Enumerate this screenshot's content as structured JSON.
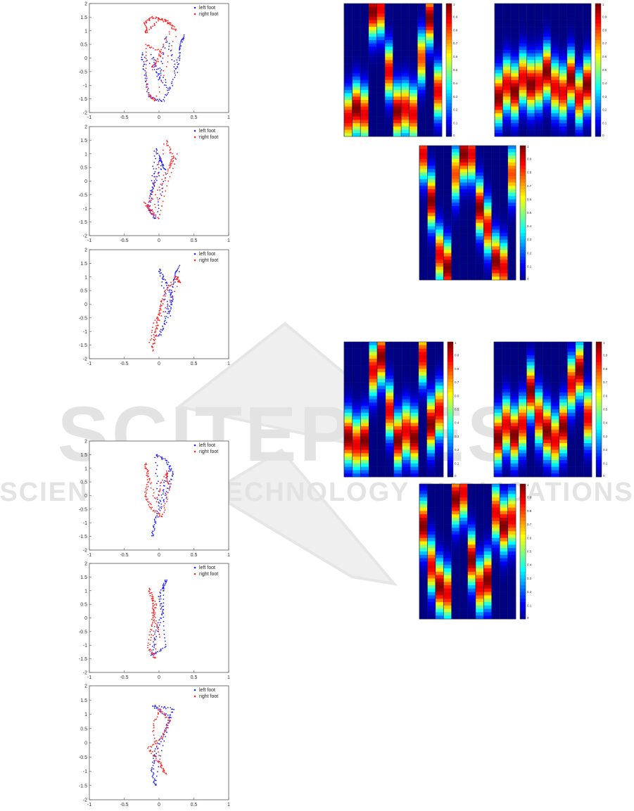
{
  "chart_data": [
    {
      "type": "scatter",
      "id": "trajectory-1",
      "xlim": [
        -1,
        1
      ],
      "ylim": [
        -2,
        2
      ],
      "xticks": [
        "-1",
        "-0.5",
        "0",
        "0.5",
        "1"
      ],
      "yticks": [
        "2",
        "1.5",
        "1",
        "0.5",
        "0",
        "-0.5",
        "-1",
        "-1.5",
        "-2"
      ],
      "legend": [
        {
          "label": "left foot",
          "color": "#1f1fff"
        },
        {
          "label": "right foot",
          "color": "#ff1f1f"
        }
      ],
      "series": [
        {
          "name": "left foot",
          "color": "#1f1fff",
          "points": [
            [
              -0.25,
              0.2
            ],
            [
              -0.2,
              -0.6
            ],
            [
              -0.15,
              -1.4
            ],
            [
              0.05,
              -1.6
            ],
            [
              0.2,
              -0.9
            ],
            [
              0.3,
              0.3
            ],
            [
              0.35,
              0.85
            ],
            [
              0.25,
              -0.5
            ],
            [
              0.1,
              0.8
            ],
            [
              0.0,
              -0.8
            ],
            [
              -0.1,
              0.1
            ],
            [
              0.15,
              -1.2
            ]
          ]
        },
        {
          "name": "right foot",
          "color": "#ff1f1f",
          "points": [
            [
              -0.2,
              1.3
            ],
            [
              -0.1,
              1.5
            ],
            [
              0.1,
              1.4
            ],
            [
              0.25,
              1.0
            ],
            [
              -0.05,
              -1.6
            ],
            [
              -0.15,
              -1.3
            ],
            [
              -0.2,
              0.5
            ],
            [
              0.05,
              0.2
            ],
            [
              -0.1,
              -0.4
            ],
            [
              0.2,
              1.2
            ],
            [
              0.0,
              1.45
            ],
            [
              -0.18,
              0.9
            ]
          ]
        }
      ]
    },
    {
      "type": "scatter",
      "id": "trajectory-2",
      "xlim": [
        -1,
        1
      ],
      "ylim": [
        -2,
        2
      ],
      "xticks": [
        "-1",
        "-0.5",
        "0",
        "0.5",
        "1"
      ],
      "yticks": [
        "2",
        "1.5",
        "1",
        "0.5",
        "0",
        "-0.5",
        "-1",
        "-1.5",
        "-2"
      ],
      "legend": [
        {
          "label": "left foot",
          "color": "#1f1fff"
        },
        {
          "label": "right foot",
          "color": "#ff1f1f"
        }
      ],
      "series": [
        {
          "name": "left foot",
          "color": "#1f1fff",
          "points": [
            [
              -0.05,
              1.2
            ],
            [
              0.05,
              0.6
            ],
            [
              -0.1,
              -0.3
            ],
            [
              -0.15,
              -1.0
            ],
            [
              -0.05,
              -1.4
            ],
            [
              0.1,
              0.4
            ],
            [
              0.0,
              0.9
            ],
            [
              -0.12,
              -0.6
            ]
          ]
        },
        {
          "name": "right foot",
          "color": "#ff1f1f",
          "points": [
            [
              0.1,
              1.5
            ],
            [
              0.2,
              0.9
            ],
            [
              0.15,
              0.5
            ],
            [
              -0.1,
              -1.2
            ],
            [
              -0.2,
              -0.8
            ],
            [
              0.0,
              -1.4
            ],
            [
              0.25,
              1.0
            ],
            [
              -0.15,
              -0.9
            ]
          ]
        }
      ]
    },
    {
      "type": "scatter",
      "id": "trajectory-3",
      "xlim": [
        -1,
        1
      ],
      "ylim": [
        -2,
        2
      ],
      "xticks": [
        "-1",
        "-0.5",
        "0",
        "0.5",
        "1"
      ],
      "yticks": [
        "2",
        "1.5",
        "1",
        "0.5",
        "0",
        "-0.5",
        "-1",
        "-1.5",
        "-2"
      ],
      "legend": [
        {
          "label": "left foot",
          "color": "#1f1fff"
        },
        {
          "label": "right foot",
          "color": "#ff1f1f"
        }
      ],
      "series": [
        {
          "name": "left foot",
          "color": "#1f1fff",
          "points": [
            [
              0.0,
              1.3
            ],
            [
              0.1,
              0.8
            ],
            [
              0.2,
              0.2
            ],
            [
              0.1,
              -0.6
            ],
            [
              0.0,
              -1.2
            ],
            [
              0.3,
              1.4
            ],
            [
              0.2,
              0.9
            ],
            [
              0.15,
              -0.4
            ]
          ]
        },
        {
          "name": "right foot",
          "color": "#ff1f1f",
          "points": [
            [
              -0.1,
              -1.7
            ],
            [
              -0.05,
              -1.1
            ],
            [
              0.0,
              -0.3
            ],
            [
              0.1,
              0.5
            ],
            [
              0.25,
              1.0
            ],
            [
              0.3,
              0.8
            ],
            [
              -0.15,
              -1.4
            ],
            [
              0.05,
              0.2
            ]
          ]
        }
      ]
    },
    {
      "type": "scatter",
      "id": "trajectory-4",
      "xlim": [
        -1,
        1
      ],
      "ylim": [
        -2,
        2
      ],
      "xticks": [
        "-1",
        "-0.5",
        "0",
        "0.5",
        "1"
      ],
      "yticks": [
        "2",
        "1.5",
        "1",
        "0.5",
        "0",
        "-0.5",
        "-1",
        "-1.5",
        "-2"
      ],
      "legend": [
        {
          "label": "left foot",
          "color": "#1f1fff"
        },
        {
          "label": "right foot",
          "color": "#ff1f1f"
        }
      ],
      "series": [
        {
          "name": "left foot",
          "color": "#1f1fff",
          "points": [
            [
              -0.05,
              1.5
            ],
            [
              0.1,
              1.3
            ],
            [
              0.2,
              0.8
            ],
            [
              0.1,
              0.0
            ],
            [
              -0.05,
              -0.9
            ],
            [
              -0.1,
              -1.5
            ],
            [
              0.15,
              1.1
            ],
            [
              0.0,
              -0.4
            ]
          ]
        },
        {
          "name": "right foot",
          "color": "#ff1f1f",
          "points": [
            [
              -0.2,
              1.2
            ],
            [
              -0.15,
              0.6
            ],
            [
              -0.2,
              0.0
            ],
            [
              -0.1,
              -0.5
            ],
            [
              0.05,
              -0.8
            ],
            [
              0.15,
              0.4
            ],
            [
              0.1,
              0.9
            ],
            [
              -0.05,
              -0.2
            ]
          ]
        }
      ]
    },
    {
      "type": "scatter",
      "id": "trajectory-5",
      "xlim": [
        -1,
        1
      ],
      "ylim": [
        -2,
        2
      ],
      "xticks": [
        "-1",
        "-0.5",
        "0",
        "0.5",
        "1"
      ],
      "yticks": [
        "2",
        "1.5",
        "1",
        "0.5",
        "0",
        "-0.5",
        "-1",
        "-1.5",
        "-2"
      ],
      "legend": [
        {
          "label": "left foot",
          "color": "#1f1fff"
        },
        {
          "label": "right foot",
          "color": "#ff1f1f"
        }
      ],
      "series": [
        {
          "name": "left foot",
          "color": "#1f1fff",
          "points": [
            [
              0.1,
              1.4
            ],
            [
              0.0,
              0.8
            ],
            [
              0.05,
              0.2
            ],
            [
              -0.05,
              -0.6
            ],
            [
              -0.1,
              -1.4
            ],
            [
              0.1,
              -1.0
            ],
            [
              0.05,
              1.0
            ]
          ]
        },
        {
          "name": "right foot",
          "color": "#ff1f1f",
          "points": [
            [
              -0.15,
              1.1
            ],
            [
              -0.05,
              0.5
            ],
            [
              -0.1,
              -0.2
            ],
            [
              -0.15,
              -1.1
            ],
            [
              -0.05,
              -1.5
            ],
            [
              -0.1,
              0.9
            ],
            [
              0.0,
              -0.7
            ]
          ]
        }
      ]
    },
    {
      "type": "scatter",
      "id": "trajectory-6",
      "xlim": [
        -1,
        1
      ],
      "ylim": [
        -2,
        2
      ],
      "xticks": [
        "-1",
        "-0.5",
        "0",
        "0.5",
        "1"
      ],
      "yticks": [
        "2",
        "1.5",
        "1",
        "0.5",
        "0",
        "-0.5",
        "-1",
        "-1.5",
        "-2"
      ],
      "legend": [
        {
          "label": "left foot",
          "color": "#1f1fff"
        },
        {
          "label": "right foot",
          "color": "#ff1f1f"
        }
      ],
      "series": [
        {
          "name": "left foot",
          "color": "#1f1fff",
          "points": [
            [
              -0.1,
              1.3
            ],
            [
              0.2,
              1.2
            ],
            [
              0.1,
              0.5
            ],
            [
              -0.05,
              -0.3
            ],
            [
              -0.1,
              -1.0
            ],
            [
              -0.05,
              -1.5
            ],
            [
              0.15,
              0.9
            ]
          ]
        },
        {
          "name": "right foot",
          "color": "#ff1f1f",
          "points": [
            [
              0.0,
              1.2
            ],
            [
              0.15,
              0.8
            ],
            [
              0.05,
              0.2
            ],
            [
              -0.15,
              -0.2
            ],
            [
              0.0,
              -0.7
            ],
            [
              0.1,
              -1.1
            ],
            [
              -0.1,
              0.4
            ]
          ]
        }
      ]
    },
    {
      "type": "heatmap",
      "id": "heatmap-1",
      "colorbar": [
        "0",
        "0.1",
        "0.2",
        "0.3",
        "0.4",
        "0.5",
        "0.6",
        "0.7",
        "0.8",
        "0.9",
        "1"
      ],
      "columns": 12,
      "peak_rows": [
        0.85,
        0.78,
        0.82,
        0.05,
        0.03,
        0.5,
        0.8,
        0.78,
        0.82,
        0.4,
        0.1,
        0.65
      ],
      "widths": [
        0.9,
        1.0,
        0.9,
        1.0,
        0.9,
        0.9,
        1.0,
        0.9,
        0.9,
        0.8,
        1.0,
        0.9
      ]
    },
    {
      "type": "heatmap",
      "id": "heatmap-2",
      "colorbar": [
        "0",
        "0.1",
        "0.2",
        "0.3",
        "0.4",
        "0.5",
        "0.6",
        "0.7",
        "0.8",
        "0.9",
        "1"
      ],
      "columns": 12,
      "peak_rows": [
        0.7,
        0.6,
        0.65,
        0.55,
        0.6,
        0.58,
        0.5,
        0.62,
        0.66,
        0.55,
        0.7,
        0.6
      ],
      "widths": [
        1.0,
        0.9,
        1.0,
        0.9,
        1.0,
        0.9,
        1.0,
        0.9,
        0.9,
        1.0,
        0.9,
        1.0
      ]
    },
    {
      "type": "heatmap",
      "id": "heatmap-3",
      "colorbar": [
        "0",
        "0.1",
        "0.2",
        "0.3",
        "0.4",
        "0.5",
        "0.6",
        "0.7",
        "0.8",
        "0.9",
        "1"
      ],
      "columns": 12,
      "peak_rows": [
        0.05,
        0.4,
        0.8,
        0.9,
        0.2,
        0.05,
        0.05,
        0.45,
        0.6,
        0.85,
        0.9,
        0.2
      ],
      "widths": [
        0.9,
        1.0,
        0.9,
        1.0,
        0.8,
        1.0,
        0.9,
        1.0,
        0.9,
        1.0,
        0.9,
        0.8
      ]
    },
    {
      "type": "heatmap",
      "id": "heatmap-4",
      "colorbar": [
        "0",
        "0.1",
        "0.2",
        "0.3",
        "0.4",
        "0.5",
        "0.6",
        "0.7",
        "0.8",
        "0.9",
        "1"
      ],
      "columns": 12,
      "peak_rows": [
        0.7,
        0.75,
        0.72,
        0.2,
        0.1,
        0.5,
        0.72,
        0.65,
        0.7,
        0.1,
        0.6,
        0.5
      ],
      "widths": [
        1.0,
        0.9,
        1.0,
        0.9,
        1.0,
        0.9,
        1.0,
        0.9,
        1.0,
        0.9,
        1.0,
        0.9
      ]
    },
    {
      "type": "heatmap",
      "id": "heatmap-5",
      "colorbar": [
        "0",
        "0.1",
        "0.2",
        "0.3",
        "0.4",
        "0.5",
        "0.6",
        "0.7",
        "0.8",
        "0.9",
        "1"
      ],
      "columns": 12,
      "peak_rows": [
        0.7,
        0.6,
        0.68,
        0.6,
        0.35,
        0.55,
        0.65,
        0.72,
        0.62,
        0.3,
        0.2,
        0.55
      ],
      "widths": [
        1.0,
        0.9,
        1.0,
        0.9,
        1.0,
        0.9,
        1.0,
        0.9,
        1.0,
        0.9,
        1.0,
        0.9
      ]
    },
    {
      "type": "heatmap",
      "id": "heatmap-6",
      "colorbar": [
        "0",
        "0.1",
        "0.2",
        "0.3",
        "0.4",
        "0.5",
        "0.6",
        "0.7",
        "0.8",
        "0.9",
        "1"
      ],
      "columns": 12,
      "peak_rows": [
        0.3,
        0.6,
        0.75,
        0.8,
        0.1,
        0.05,
        0.55,
        0.75,
        0.7,
        0.2,
        0.3,
        0.25
      ],
      "widths": [
        1.0,
        0.9,
        1.0,
        0.9,
        1.0,
        0.9,
        1.0,
        0.9,
        1.0,
        0.9,
        1.0,
        0.9
      ]
    }
  ],
  "watermark": {
    "brand": "SCITEPRESS",
    "tagline": "SCIENCE AND TECHNOLOGY PUBLICATIONS"
  }
}
